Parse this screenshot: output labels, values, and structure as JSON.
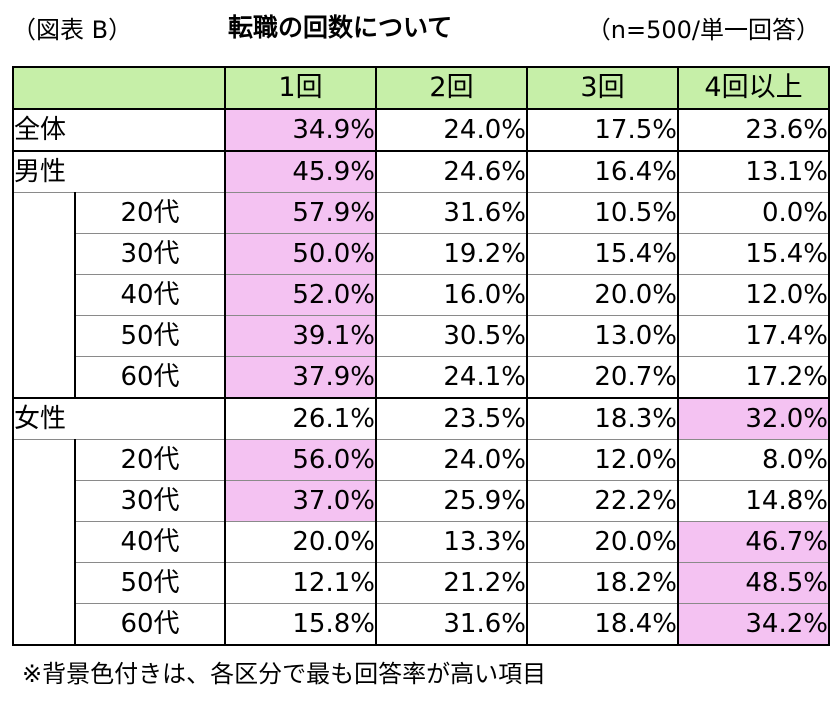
{
  "header": {
    "fig_label": "（図表 B）",
    "title": "転職の回数について",
    "sample_note": "（n=500/単一回答）"
  },
  "chart_data": {
    "type": "table",
    "title": "転職の回数について",
    "columns": [
      "1回",
      "2回",
      "3回",
      "4回以上"
    ],
    "rows": [
      {
        "group": "全体",
        "label": "全体",
        "level": 0,
        "values": [
          "34.9%",
          "24.0%",
          "17.5%",
          "23.6%"
        ],
        "highlight": 0
      },
      {
        "group": "男性",
        "label": "男性",
        "level": 0,
        "values": [
          "45.9%",
          "24.6%",
          "16.4%",
          "13.1%"
        ],
        "highlight": 0
      },
      {
        "group": "男性",
        "label": "20代",
        "level": 1,
        "values": [
          "57.9%",
          "31.6%",
          "10.5%",
          "0.0%"
        ],
        "highlight": 0
      },
      {
        "group": "男性",
        "label": "30代",
        "level": 1,
        "values": [
          "50.0%",
          "19.2%",
          "15.4%",
          "15.4%"
        ],
        "highlight": 0
      },
      {
        "group": "男性",
        "label": "40代",
        "level": 1,
        "values": [
          "52.0%",
          "16.0%",
          "20.0%",
          "12.0%"
        ],
        "highlight": 0
      },
      {
        "group": "男性",
        "label": "50代",
        "level": 1,
        "values": [
          "39.1%",
          "30.5%",
          "13.0%",
          "17.4%"
        ],
        "highlight": 0
      },
      {
        "group": "男性",
        "label": "60代",
        "level": 1,
        "values": [
          "37.9%",
          "24.1%",
          "20.7%",
          "17.2%"
        ],
        "highlight": 0
      },
      {
        "group": "女性",
        "label": "女性",
        "level": 0,
        "values": [
          "26.1%",
          "23.5%",
          "18.3%",
          "32.0%"
        ],
        "highlight": 3
      },
      {
        "group": "女性",
        "label": "20代",
        "level": 1,
        "values": [
          "56.0%",
          "24.0%",
          "12.0%",
          "8.0%"
        ],
        "highlight": 0
      },
      {
        "group": "女性",
        "label": "30代",
        "level": 1,
        "values": [
          "37.0%",
          "25.9%",
          "22.2%",
          "14.8%"
        ],
        "highlight": 0
      },
      {
        "group": "女性",
        "label": "40代",
        "level": 1,
        "values": [
          "20.0%",
          "13.3%",
          "20.0%",
          "46.7%"
        ],
        "highlight": 3
      },
      {
        "group": "女性",
        "label": "50代",
        "level": 1,
        "values": [
          "12.1%",
          "21.2%",
          "18.2%",
          "48.5%"
        ],
        "highlight": 3
      },
      {
        "group": "女性",
        "label": "60代",
        "level": 1,
        "values": [
          "15.8%",
          "31.6%",
          "18.4%",
          "34.2%"
        ],
        "highlight": 3
      }
    ],
    "header_color": "#c6efa8",
    "highlight_color": "#f4c2f2"
  },
  "footnote": "※背景色付きは、各区分で最も回答率が高い項目"
}
